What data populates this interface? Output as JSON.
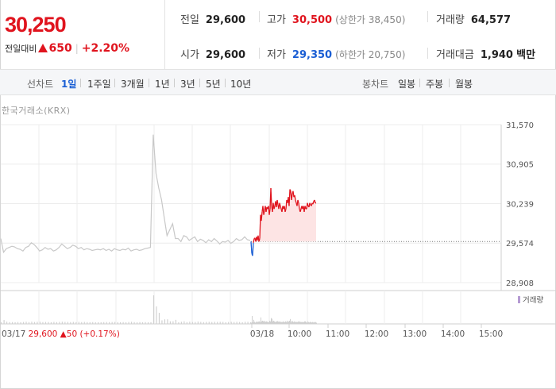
{
  "quote": {
    "price": "30,250",
    "change_label": "전일대비",
    "change_amount": "650",
    "change_percent": "+2.20%"
  },
  "stats": {
    "prev_close": {
      "label": "전일",
      "value": "29,600"
    },
    "high": {
      "label": "고가",
      "value": "30,500",
      "sub_label": "(상한가 38,450)"
    },
    "volume": {
      "label": "거래량",
      "value": "64,577"
    },
    "open": {
      "label": "시가",
      "value": "29,600"
    },
    "low": {
      "label": "저가",
      "value": "29,350",
      "sub_label": "(하한가 20,750)"
    },
    "trade_amount": {
      "label": "거래대금",
      "value": "1,940",
      "unit": "백만"
    }
  },
  "toolbar": {
    "line_chart_label": "선차트",
    "periods": [
      "1일",
      "1주일",
      "3개월",
      "1년",
      "3년",
      "5년",
      "10년"
    ],
    "active_period": "1일",
    "candle_chart_label": "봉차트",
    "candles": [
      "일봉",
      "주봉",
      "월봉"
    ]
  },
  "source_label": "한국거래소(KRX)",
  "colors": {
    "up": "#e0141e",
    "down": "#1a5ed4",
    "prev_day": "#c8c8c8"
  },
  "chart_data": {
    "type": "line",
    "y_ticks": [
      "31,570",
      "30,905",
      "30,239",
      "29,574",
      "28,908"
    ],
    "ylim": [
      28908,
      31570
    ],
    "reference_line": 29600,
    "x_tick_labels": [
      "03/18",
      "10:00",
      "11:00",
      "12:00",
      "13:00",
      "14:00",
      "15:00"
    ],
    "volume_legend": "거래량",
    "prev_day_note": {
      "date": "03/17",
      "close": "29,600",
      "change": "50",
      "change_pct": "(+0.17%)"
    },
    "series": [
      {
        "name": "03/17",
        "x_minutes": [
          0,
          2,
          4,
          6,
          8,
          10,
          12,
          14,
          16,
          18,
          20,
          22,
          24,
          26,
          28,
          30,
          32,
          34,
          36,
          38,
          40,
          42,
          44,
          46,
          48,
          50,
          52,
          54,
          56,
          58,
          60,
          62,
          64,
          66,
          68,
          70,
          72,
          74,
          76,
          78,
          80,
          82,
          84,
          86,
          88,
          90,
          92,
          94,
          96,
          98,
          100,
          102,
          104,
          106,
          108,
          110,
          112,
          114,
          116,
          118,
          120,
          122,
          124,
          126,
          128,
          130,
          132,
          134,
          136,
          138,
          140,
          142,
          144,
          146,
          148,
          150,
          152,
          154,
          156,
          158,
          160,
          162,
          164,
          166,
          168,
          170,
          172,
          174,
          176,
          178,
          180
        ],
        "values": [
          29650,
          29420,
          29480,
          29500,
          29520,
          29510,
          29480,
          29470,
          29440,
          29500,
          29520,
          29580,
          29550,
          29500,
          29440,
          29460,
          29500,
          29470,
          29480,
          29440,
          29460,
          29500,
          29560,
          29520,
          29480,
          29500,
          29540,
          29520,
          29480,
          29500,
          29460,
          29480,
          29470,
          29450,
          29460,
          29470,
          29460,
          29480,
          29450,
          29470,
          29440,
          29480,
          29460,
          29450,
          29470,
          29460,
          29490,
          29440,
          29460,
          29470,
          29450,
          29460,
          29480,
          29490,
          29500,
          31400,
          30750,
          30500,
          30300,
          30000,
          29700,
          29800,
          29900,
          29650,
          29650,
          29600,
          29700,
          29680,
          29620,
          29650,
          29680,
          29600,
          29640,
          29620,
          29580,
          29630,
          29600,
          29650,
          29610,
          29560,
          29600,
          29590,
          29620,
          29570,
          29600,
          29650,
          29620,
          29630,
          29680,
          29630,
          29620
        ]
      },
      {
        "name": "03/18",
        "x_minutes": [
          0,
          1,
          2,
          3,
          4,
          5,
          6,
          7,
          8,
          9,
          10,
          11,
          12,
          13,
          14,
          15,
          16,
          17,
          18,
          19,
          20,
          21,
          22,
          23,
          24,
          25,
          26,
          27,
          28,
          29,
          30,
          31,
          32,
          33,
          34,
          35,
          36,
          37,
          38,
          39,
          40,
          41,
          42,
          43,
          44,
          45,
          46,
          47,
          48,
          49,
          50,
          51,
          52,
          53,
          54,
          55,
          56,
          57,
          58,
          59,
          60,
          61,
          62,
          63,
          64,
          65,
          66,
          67,
          68,
          69,
          70,
          71,
          72,
          73,
          74,
          75,
          76,
          77,
          78,
          79,
          80,
          81,
          82
        ],
        "values": [
          29600,
          29400,
          29360,
          29580,
          29650,
          29660,
          29600,
          29680,
          29620,
          29700,
          29600,
          29650,
          30050,
          29950,
          30100,
          30200,
          30050,
          30120,
          30200,
          30100,
          30180,
          30150,
          30200,
          30050,
          30150,
          30500,
          30200,
          30100,
          30250,
          30150,
          30200,
          30280,
          30180,
          30300,
          30220,
          30150,
          30250,
          30200,
          30150,
          30100,
          30200,
          30150,
          30200,
          30100,
          30150,
          30300,
          30250,
          30350,
          30200,
          30480,
          30450,
          30300,
          30400,
          30450,
          30350,
          30380,
          30300,
          30250,
          30200,
          30300,
          30250,
          30150,
          30100,
          30150,
          30200,
          30150,
          30200,
          30100,
          30200,
          30150,
          30150,
          30250,
          30200,
          30180,
          30250,
          30220,
          30200,
          30250,
          30230,
          30280,
          30300,
          30250,
          30250
        ]
      }
    ]
  }
}
